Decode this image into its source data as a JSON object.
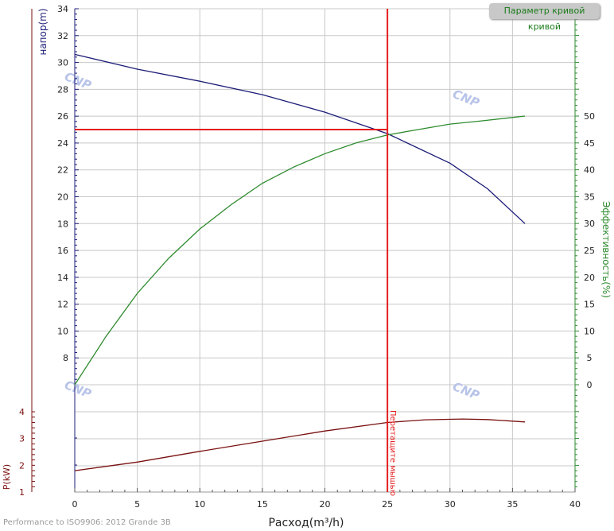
{
  "chart_data": {
    "type": "line",
    "xlabel": "Расход(m³/h)",
    "xlim": [
      0,
      40
    ],
    "x_ticks": [
      0,
      5,
      10,
      15,
      20,
      25,
      30,
      35,
      40
    ],
    "head_axis": {
      "label": "напор(m)",
      "ylim": [
        6,
        34
      ],
      "ticks": [
        8,
        10,
        12,
        14,
        16,
        18,
        20,
        22,
        24,
        26,
        28,
        30,
        32,
        34
      ]
    },
    "efficiency_axis": {
      "label": "Эффективность(%)",
      "ticks": [
        0,
        5,
        10,
        15,
        20,
        25,
        30,
        35,
        40,
        45,
        50
      ]
    },
    "power_axis": {
      "label": "P(kW)",
      "ylim": [
        1,
        4
      ],
      "ticks": [
        1,
        2,
        3,
        4
      ]
    },
    "grid": true,
    "series": [
      {
        "axis": "head",
        "color": "#1c1c78",
        "x": [
          0,
          5,
          10,
          15,
          20,
          25,
          30,
          33,
          36
        ],
        "y": [
          30.6,
          29.5,
          28.6,
          27.6,
          26.3,
          24.7,
          22.5,
          20.6,
          18.0
        ]
      },
      {
        "axis": "efficiency",
        "color": "#2e8b2e",
        "x": [
          0,
          2.5,
          5,
          7.5,
          10,
          12.5,
          15,
          17.5,
          20,
          22.5,
          25,
          27.5,
          30,
          32.5,
          36
        ],
        "y": [
          0,
          9,
          17,
          23.5,
          29,
          33.5,
          37.5,
          40.5,
          43,
          45,
          46.5,
          47.5,
          48.5,
          49.1,
          50
        ]
      },
      {
        "axis": "power",
        "color": "#7a1010",
        "x": [
          0,
          5,
          10,
          15,
          20,
          25,
          28,
          31,
          33,
          36
        ],
        "y": [
          1.8,
          2.12,
          2.52,
          2.9,
          3.28,
          3.6,
          3.7,
          3.73,
          3.71,
          3.62
        ]
      }
    ],
    "operating_point": {
      "flow": 25,
      "head": 25,
      "color": "#e41e1e",
      "label": "Перетащите мышью"
    },
    "watermark": "CNP"
  },
  "ui": {
    "param_button": "Параметр кривой кривой",
    "footer": "Performance to  ISO9906: 2012 Grande 3B"
  }
}
